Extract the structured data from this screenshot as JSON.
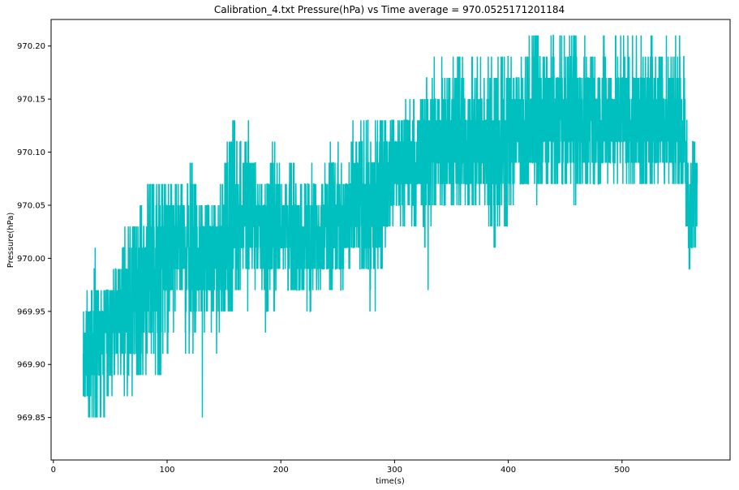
{
  "chart_data": {
    "type": "line",
    "title": "Calibration_4.txt  Pressure(hPa) vs Time  average = 970.0525171201184",
    "xlabel": "time(s)",
    "ylabel": "Pressure(hPa)",
    "xlim": [
      -2,
      595
    ],
    "ylim": [
      969.81,
      970.225
    ],
    "xticks": [
      0,
      100,
      200,
      300,
      400,
      500
    ],
    "xtick_labels": [
      "0",
      "100",
      "200",
      "300",
      "400",
      "500"
    ],
    "yticks": [
      969.85,
      969.9,
      969.95,
      970.0,
      970.05,
      970.1,
      970.15,
      970.2
    ],
    "ytick_labels": [
      "969.85",
      "969.90",
      "969.95",
      "970.00",
      "970.05",
      "970.10",
      "970.15",
      "970.20"
    ],
    "grid": false,
    "legend": "none",
    "series": [
      {
        "color": "#00bfbf",
        "x": [
          26,
          28,
          30,
          33,
          36,
          40,
          45,
          50,
          55,
          60,
          65,
          70,
          75,
          80,
          85,
          90,
          95,
          100,
          105,
          110,
          115,
          120,
          125,
          130,
          135,
          140,
          145,
          150,
          155,
          160,
          165,
          170,
          175,
          180,
          185,
          190,
          195,
          200,
          205,
          210,
          215,
          220,
          225,
          230,
          235,
          240,
          245,
          250,
          255,
          260,
          265,
          270,
          275,
          280,
          285,
          290,
          295,
          300,
          305,
          310,
          315,
          320,
          325,
          330,
          335,
          340,
          345,
          350,
          355,
          360,
          365,
          370,
          375,
          380,
          385,
          390,
          395,
          400,
          405,
          410,
          415,
          420,
          425,
          430,
          435,
          440,
          445,
          450,
          455,
          460,
          465,
          470,
          475,
          480,
          485,
          490,
          495,
          500,
          505,
          510,
          515,
          520,
          525,
          530,
          535,
          540,
          545,
          550,
          555,
          558,
          561,
          564,
          566
        ],
        "y": [
          969.89,
          969.9,
          969.91,
          969.91,
          969.92,
          969.92,
          969.93,
          969.94,
          969.94,
          969.95,
          969.95,
          969.96,
          969.97,
          969.98,
          969.98,
          969.99,
          970.0,
          970.0,
          970.0,
          970.01,
          970.01,
          970.01,
          970.0,
          970.0,
          970.0,
          970.0,
          970.01,
          970.02,
          970.03,
          970.04,
          970.05,
          970.05,
          970.04,
          970.03,
          970.02,
          970.02,
          970.02,
          970.03,
          970.03,
          970.02,
          970.02,
          970.02,
          970.02,
          970.02,
          970.03,
          970.04,
          970.04,
          970.03,
          970.03,
          970.04,
          970.05,
          970.05,
          970.05,
          970.04,
          970.05,
          970.07,
          970.08,
          970.09,
          970.09,
          970.09,
          970.09,
          970.09,
          970.1,
          970.1,
          970.1,
          970.11,
          970.11,
          970.11,
          970.11,
          970.11,
          970.11,
          970.11,
          970.11,
          970.11,
          970.11,
          970.11,
          970.11,
          970.12,
          970.12,
          970.12,
          970.12,
          970.13,
          970.13,
          970.13,
          970.13,
          970.13,
          970.13,
          970.13,
          970.13,
          970.13,
          970.13,
          970.13,
          970.13,
          970.13,
          970.13,
          970.13,
          970.13,
          970.13,
          970.13,
          970.13,
          970.13,
          970.13,
          970.13,
          970.13,
          970.13,
          970.13,
          970.13,
          970.13,
          970.12,
          970.05,
          970.04,
          970.06,
          970.07
        ],
        "y_min": [
          969.83,
          969.85,
          969.85,
          969.85,
          969.85,
          969.85,
          969.85,
          969.87,
          969.87,
          969.87,
          969.87,
          969.88,
          969.89,
          969.89,
          969.89,
          969.9,
          969.9,
          969.91,
          969.91,
          969.92,
          969.92,
          969.92,
          969.92,
          969.85,
          969.85,
          969.88,
          969.92,
          969.94,
          969.95,
          969.96,
          969.97,
          969.97,
          969.91,
          969.87,
          969.93,
          969.95,
          969.96,
          969.97,
          969.97,
          969.96,
          969.96,
          969.96,
          969.89,
          969.95,
          969.95,
          969.97,
          969.97,
          969.97,
          969.97,
          969.97,
          969.98,
          969.98,
          969.99,
          969.91,
          969.99,
          970.0,
          970.01,
          970.02,
          970.03,
          970.03,
          970.04,
          970.04,
          970.04,
          969.97,
          970.04,
          970.05,
          970.05,
          970.05,
          970.05,
          970.05,
          970.05,
          970.05,
          970.05,
          970.05,
          970.03,
          970.01,
          970.05,
          970.01,
          970.05,
          970.06,
          970.07,
          970.07,
          970.05,
          970.07,
          970.07,
          970.07,
          970.07,
          970.07,
          970.07,
          970.05,
          970.07,
          970.07,
          970.07,
          970.07,
          970.07,
          970.07,
          970.07,
          970.07,
          970.07,
          970.07,
          970.07,
          970.07,
          970.07,
          970.07,
          970.07,
          970.07,
          970.07,
          970.07,
          970.07,
          969.99,
          969.99,
          969.99,
          970.01
        ],
        "y_max": [
          969.99,
          969.99,
          969.97,
          970.01,
          970.05,
          969.97,
          969.97,
          969.99,
          969.99,
          970.01,
          970.03,
          970.03,
          970.05,
          970.05,
          970.07,
          970.07,
          970.07,
          970.07,
          970.07,
          970.07,
          970.07,
          970.11,
          970.07,
          970.05,
          970.05,
          970.05,
          970.07,
          970.09,
          970.11,
          970.13,
          970.11,
          970.13,
          970.11,
          970.07,
          970.09,
          970.11,
          970.11,
          970.07,
          970.07,
          970.09,
          970.07,
          970.07,
          970.09,
          970.07,
          970.07,
          970.09,
          970.11,
          970.13,
          970.07,
          970.11,
          970.13,
          970.13,
          970.13,
          970.11,
          970.13,
          970.13,
          970.13,
          970.13,
          970.13,
          970.15,
          970.15,
          970.19,
          970.19,
          970.15,
          970.19,
          970.19,
          970.19,
          970.19,
          970.19,
          970.19,
          970.19,
          970.19,
          970.19,
          970.19,
          970.19,
          970.19,
          970.19,
          970.19,
          970.19,
          970.21,
          970.19,
          970.21,
          970.21,
          970.21,
          970.21,
          970.21,
          970.21,
          970.21,
          970.21,
          970.21,
          970.21,
          970.21,
          970.21,
          970.21,
          970.21,
          970.21,
          970.21,
          970.21,
          970.21,
          970.21,
          970.21,
          970.21,
          970.21,
          970.21,
          970.21,
          970.21,
          970.21,
          970.21,
          970.19,
          970.13,
          970.11,
          970.11,
          970.11
        ]
      }
    ]
  }
}
